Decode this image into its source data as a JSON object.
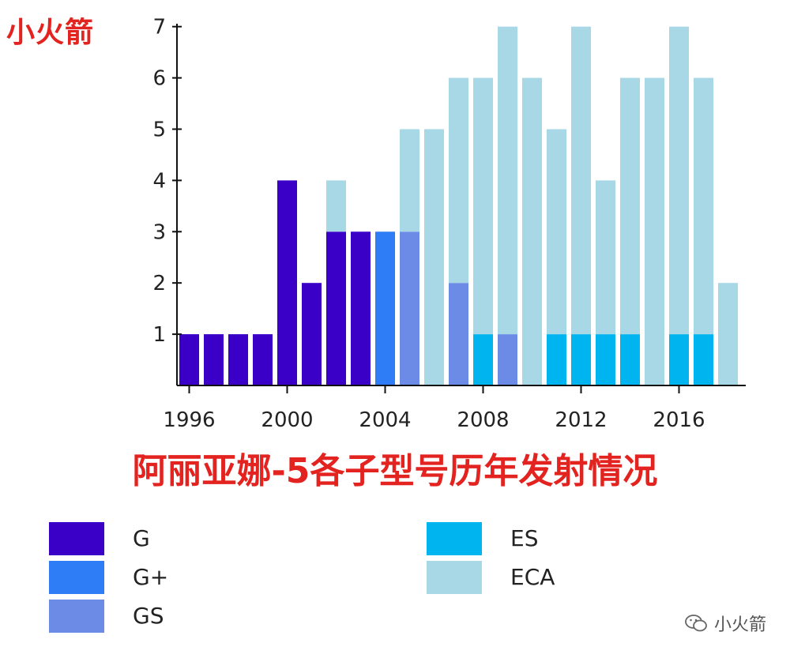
{
  "brand": "小火箭",
  "watermark": "小火箭",
  "chart_data": {
    "type": "bar",
    "stacked": true,
    "title": "阿丽亚娜-5各子型号历年发射情况",
    "xlabel": "",
    "ylabel": "",
    "ylim": [
      0,
      7
    ],
    "yticks": [
      1,
      2,
      3,
      4,
      5,
      6,
      7
    ],
    "xticks": [
      1996,
      2000,
      2004,
      2008,
      2012,
      2016
    ],
    "x": [
      1996,
      1997,
      1998,
      1999,
      2000,
      2001,
      2002,
      2003,
      2004,
      2005,
      2006,
      2007,
      2008,
      2009,
      2010,
      2011,
      2012,
      2013,
      2014,
      2015,
      2016,
      2017,
      2018
    ],
    "series": [
      {
        "name": "G",
        "color": "#3a00c8",
        "values": [
          1,
          1,
          1,
          1,
          4,
          2,
          3,
          3,
          0,
          0,
          0,
          0,
          0,
          0,
          0,
          0,
          0,
          0,
          0,
          0,
          0,
          0,
          0
        ]
      },
      {
        "name": "G+",
        "color": "#2e7cf6",
        "values": [
          0,
          0,
          0,
          0,
          0,
          0,
          0,
          0,
          3,
          0,
          0,
          0,
          0,
          0,
          0,
          0,
          0,
          0,
          0,
          0,
          0,
          0,
          0
        ]
      },
      {
        "name": "GS",
        "color": "#6b8be6",
        "values": [
          0,
          0,
          0,
          0,
          0,
          0,
          0,
          0,
          0,
          3,
          0,
          2,
          0,
          1,
          0,
          0,
          0,
          0,
          0,
          0,
          0,
          0,
          0
        ]
      },
      {
        "name": "ES",
        "color": "#00b4f0",
        "values": [
          0,
          0,
          0,
          0,
          0,
          0,
          0,
          0,
          0,
          0,
          0,
          0,
          1,
          0,
          0,
          1,
          1,
          1,
          1,
          0,
          1,
          1,
          0
        ]
      },
      {
        "name": "ECA",
        "color": "#a8d8e6",
        "values": [
          0,
          0,
          0,
          0,
          0,
          0,
          1,
          0,
          0,
          2,
          5,
          4,
          5,
          6,
          6,
          4,
          6,
          3,
          5,
          6,
          6,
          5,
          2
        ]
      }
    ],
    "legend": "bottom",
    "grid": false
  }
}
